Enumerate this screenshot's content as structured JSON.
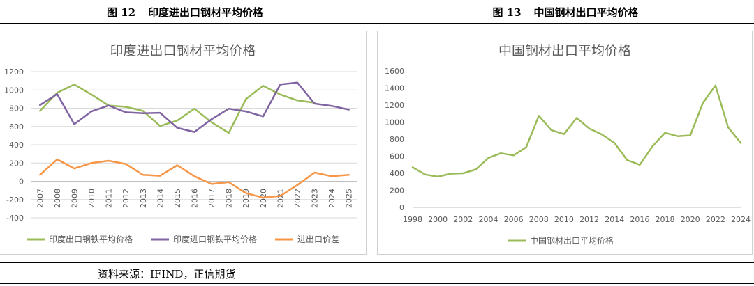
{
  "captions": {
    "left": {
      "label": "图 12",
      "title": "印度进出口钢材平均价格"
    },
    "right": {
      "label": "图 13",
      "title": "中国钢材出口平均价格"
    }
  },
  "source": "资料来源：IFIND，正信期货",
  "chart_data": [
    {
      "type": "line",
      "title": "印度进出口钢材平均价格",
      "x": [
        "2007",
        "2008",
        "2009",
        "2010",
        "2011",
        "2012",
        "2013",
        "2014",
        "2015",
        "2016",
        "2017",
        "2018",
        "2019",
        "2020",
        "2021",
        "2022",
        "2023",
        "2024",
        "2025"
      ],
      "ylim": [
        -400,
        1200
      ],
      "yticks": [
        -400,
        -200,
        0,
        200,
        400,
        600,
        800,
        1000,
        1200
      ],
      "grid": true,
      "legend_position": "bottom",
      "series": [
        {
          "name": "印度出口钢铁平均价格",
          "color": "#9bbb59",
          "values": [
            770,
            970,
            1060,
            950,
            830,
            815,
            770,
            605,
            665,
            795,
            645,
            530,
            900,
            1045,
            950,
            885,
            860,
            null,
            null
          ]
        },
        {
          "name": "印度进口钢铁平均价格",
          "color": "#8064a2",
          "values": [
            835,
            955,
            625,
            765,
            830,
            755,
            745,
            750,
            585,
            540,
            680,
            795,
            765,
            710,
            1060,
            1080,
            850,
            825,
            785
          ]
        },
        {
          "name": "进出口价差",
          "color": "#f79646",
          "values": [
            70,
            240,
            140,
            200,
            225,
            190,
            70,
            60,
            175,
            55,
            -30,
            -10,
            -130,
            -180,
            -160,
            -40,
            95,
            55,
            70
          ]
        }
      ]
    },
    {
      "type": "line",
      "title": "中国钢材出口平均价格",
      "x": [
        1998,
        1999,
        2000,
        2001,
        2002,
        2003,
        2004,
        2005,
        2006,
        2007,
        2008,
        2009,
        2010,
        2011,
        2012,
        2013,
        2014,
        2015,
        2016,
        2017,
        2018,
        2019,
        2020,
        2021,
        2022,
        2023,
        2024
      ],
      "xticks": [
        1998,
        2000,
        2002,
        2004,
        2006,
        2008,
        2010,
        2012,
        2014,
        2016,
        2018,
        2020,
        2022,
        2024
      ],
      "ylim": [
        0,
        1600
      ],
      "yticks": [
        0,
        200,
        400,
        600,
        800,
        1000,
        1200,
        1400,
        1600
      ],
      "grid": false,
      "legend_position": "bottom",
      "series": [
        {
          "name": "中国钢材出口平均价格",
          "color": "#9bbb59",
          "values": [
            470,
            385,
            360,
            395,
            400,
            445,
            580,
            635,
            610,
            705,
            1075,
            905,
            860,
            1050,
            925,
            855,
            755,
            555,
            500,
            715,
            875,
            835,
            845,
            1225,
            1430,
            940,
            755
          ]
        }
      ]
    }
  ]
}
